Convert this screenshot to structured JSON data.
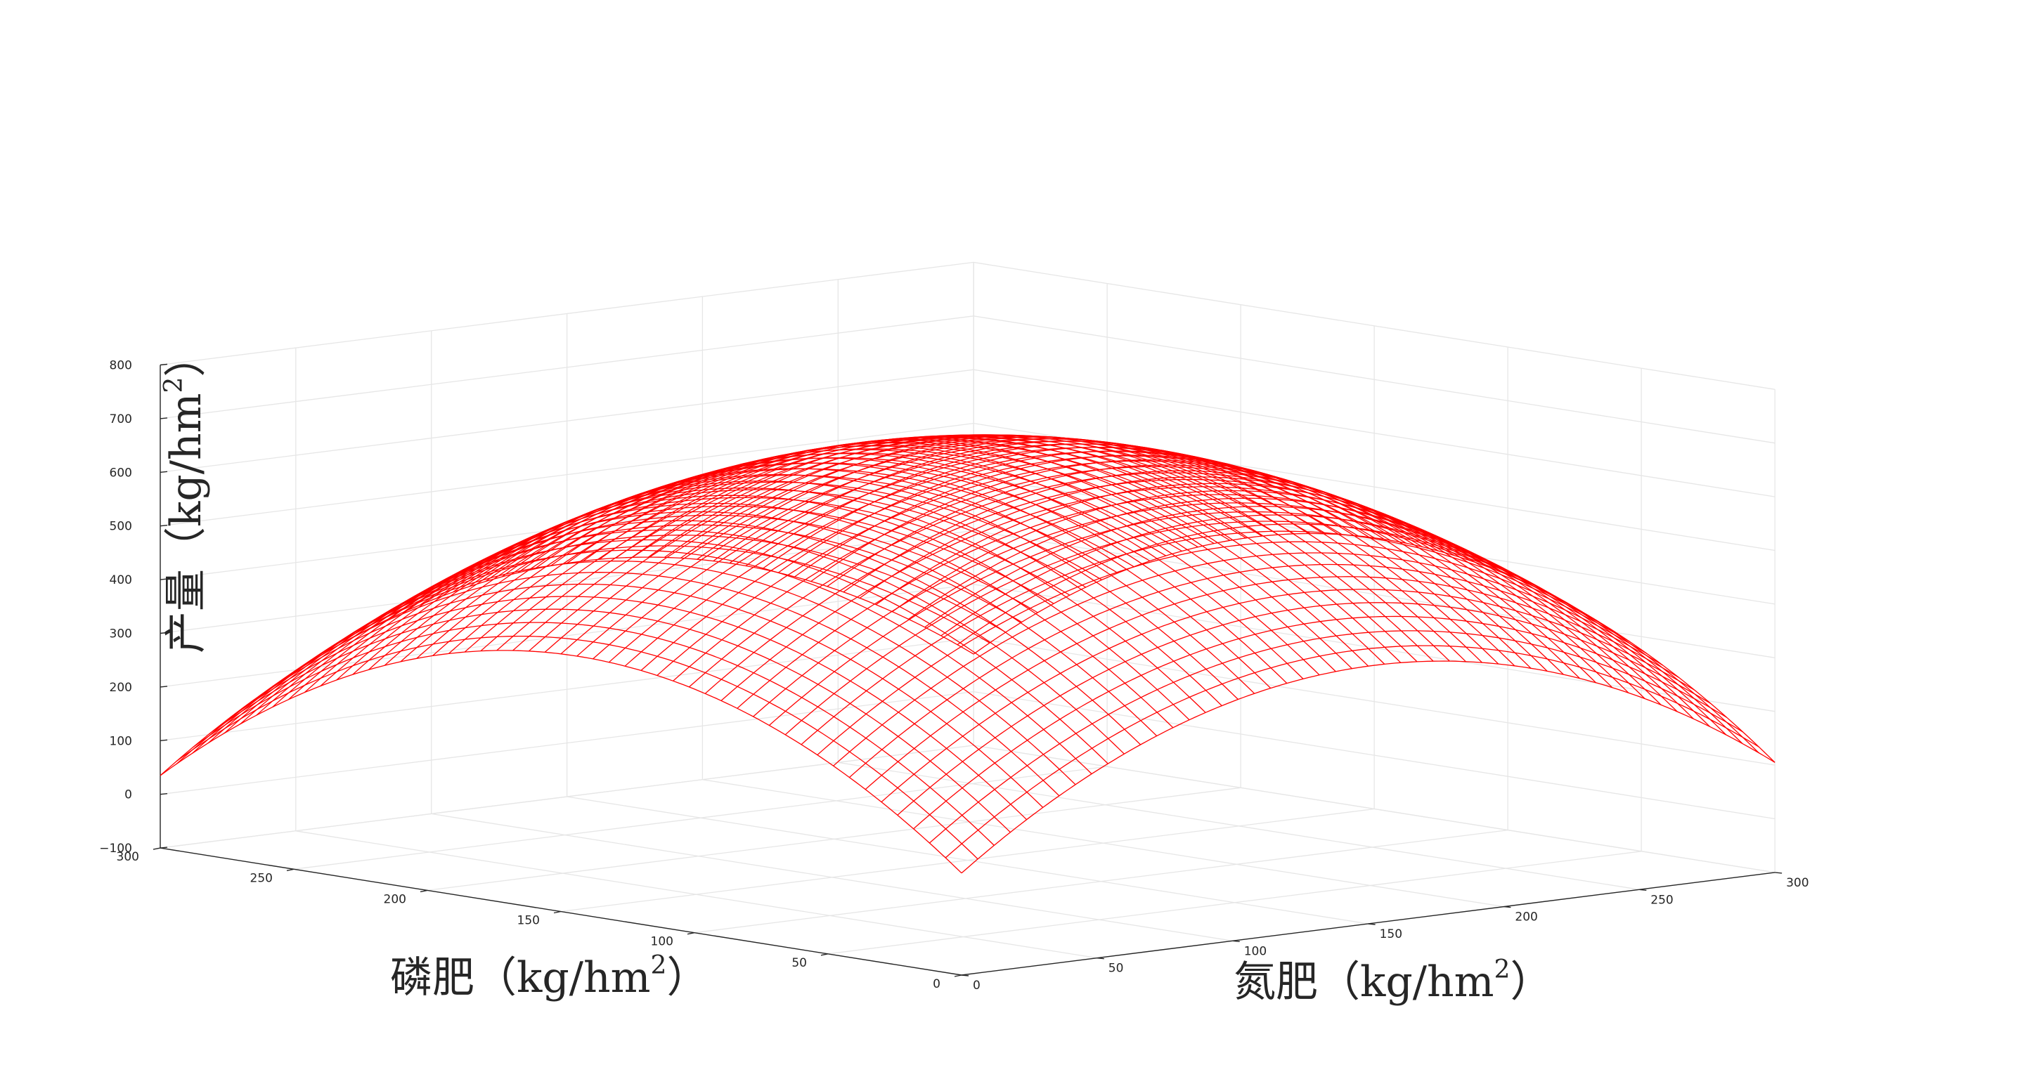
{
  "chart_data": {
    "type": "surface",
    "colors": {
      "surface": "#ff0000",
      "grid": "#e6e6e6",
      "axis": "#262626"
    },
    "grid": true,
    "x": {
      "label": "氮肥（kg/hm",
      "sup": "2",
      "close": "）",
      "range": [
        0,
        300
      ],
      "ticks": [
        0,
        50,
        100,
        150,
        200,
        250,
        300
      ],
      "tick_labels": [
        "0",
        "50",
        "100",
        "150",
        "200",
        "250",
        "300"
      ]
    },
    "y": {
      "label": "磷肥（kg/hm",
      "sup": "2",
      "close": "）",
      "range": [
        0,
        300
      ],
      "ticks": [
        0,
        50,
        100,
        150,
        200,
        250,
        300
      ],
      "tick_labels": [
        "0",
        "50",
        "100",
        "150",
        "200",
        "250",
        "300"
      ]
    },
    "z": {
      "label": "产量（kg/hm",
      "sup": "2",
      "close": "）",
      "range": [
        -100,
        800
      ],
      "ticks": [
        -100,
        0,
        100,
        200,
        300,
        400,
        500,
        600,
        700,
        800
      ],
      "tick_labels": [
        "−100",
        "0",
        "100",
        "200",
        "300",
        "400",
        "500",
        "600",
        "700",
        "800"
      ]
    },
    "surface": {
      "mesh_step": 6,
      "center": [
        150,
        150
      ],
      "peak_value": 675,
      "corner_values": {
        "n0_p0": 5,
        "n300_p0": 15,
        "n0_p300": -25,
        "n300_p300": 5
      },
      "edge_midpoint_values": {
        "n0_p150": 380,
        "n300_p150": 405,
        "n150_p0": 380,
        "n150_p300": 335
      }
    }
  }
}
